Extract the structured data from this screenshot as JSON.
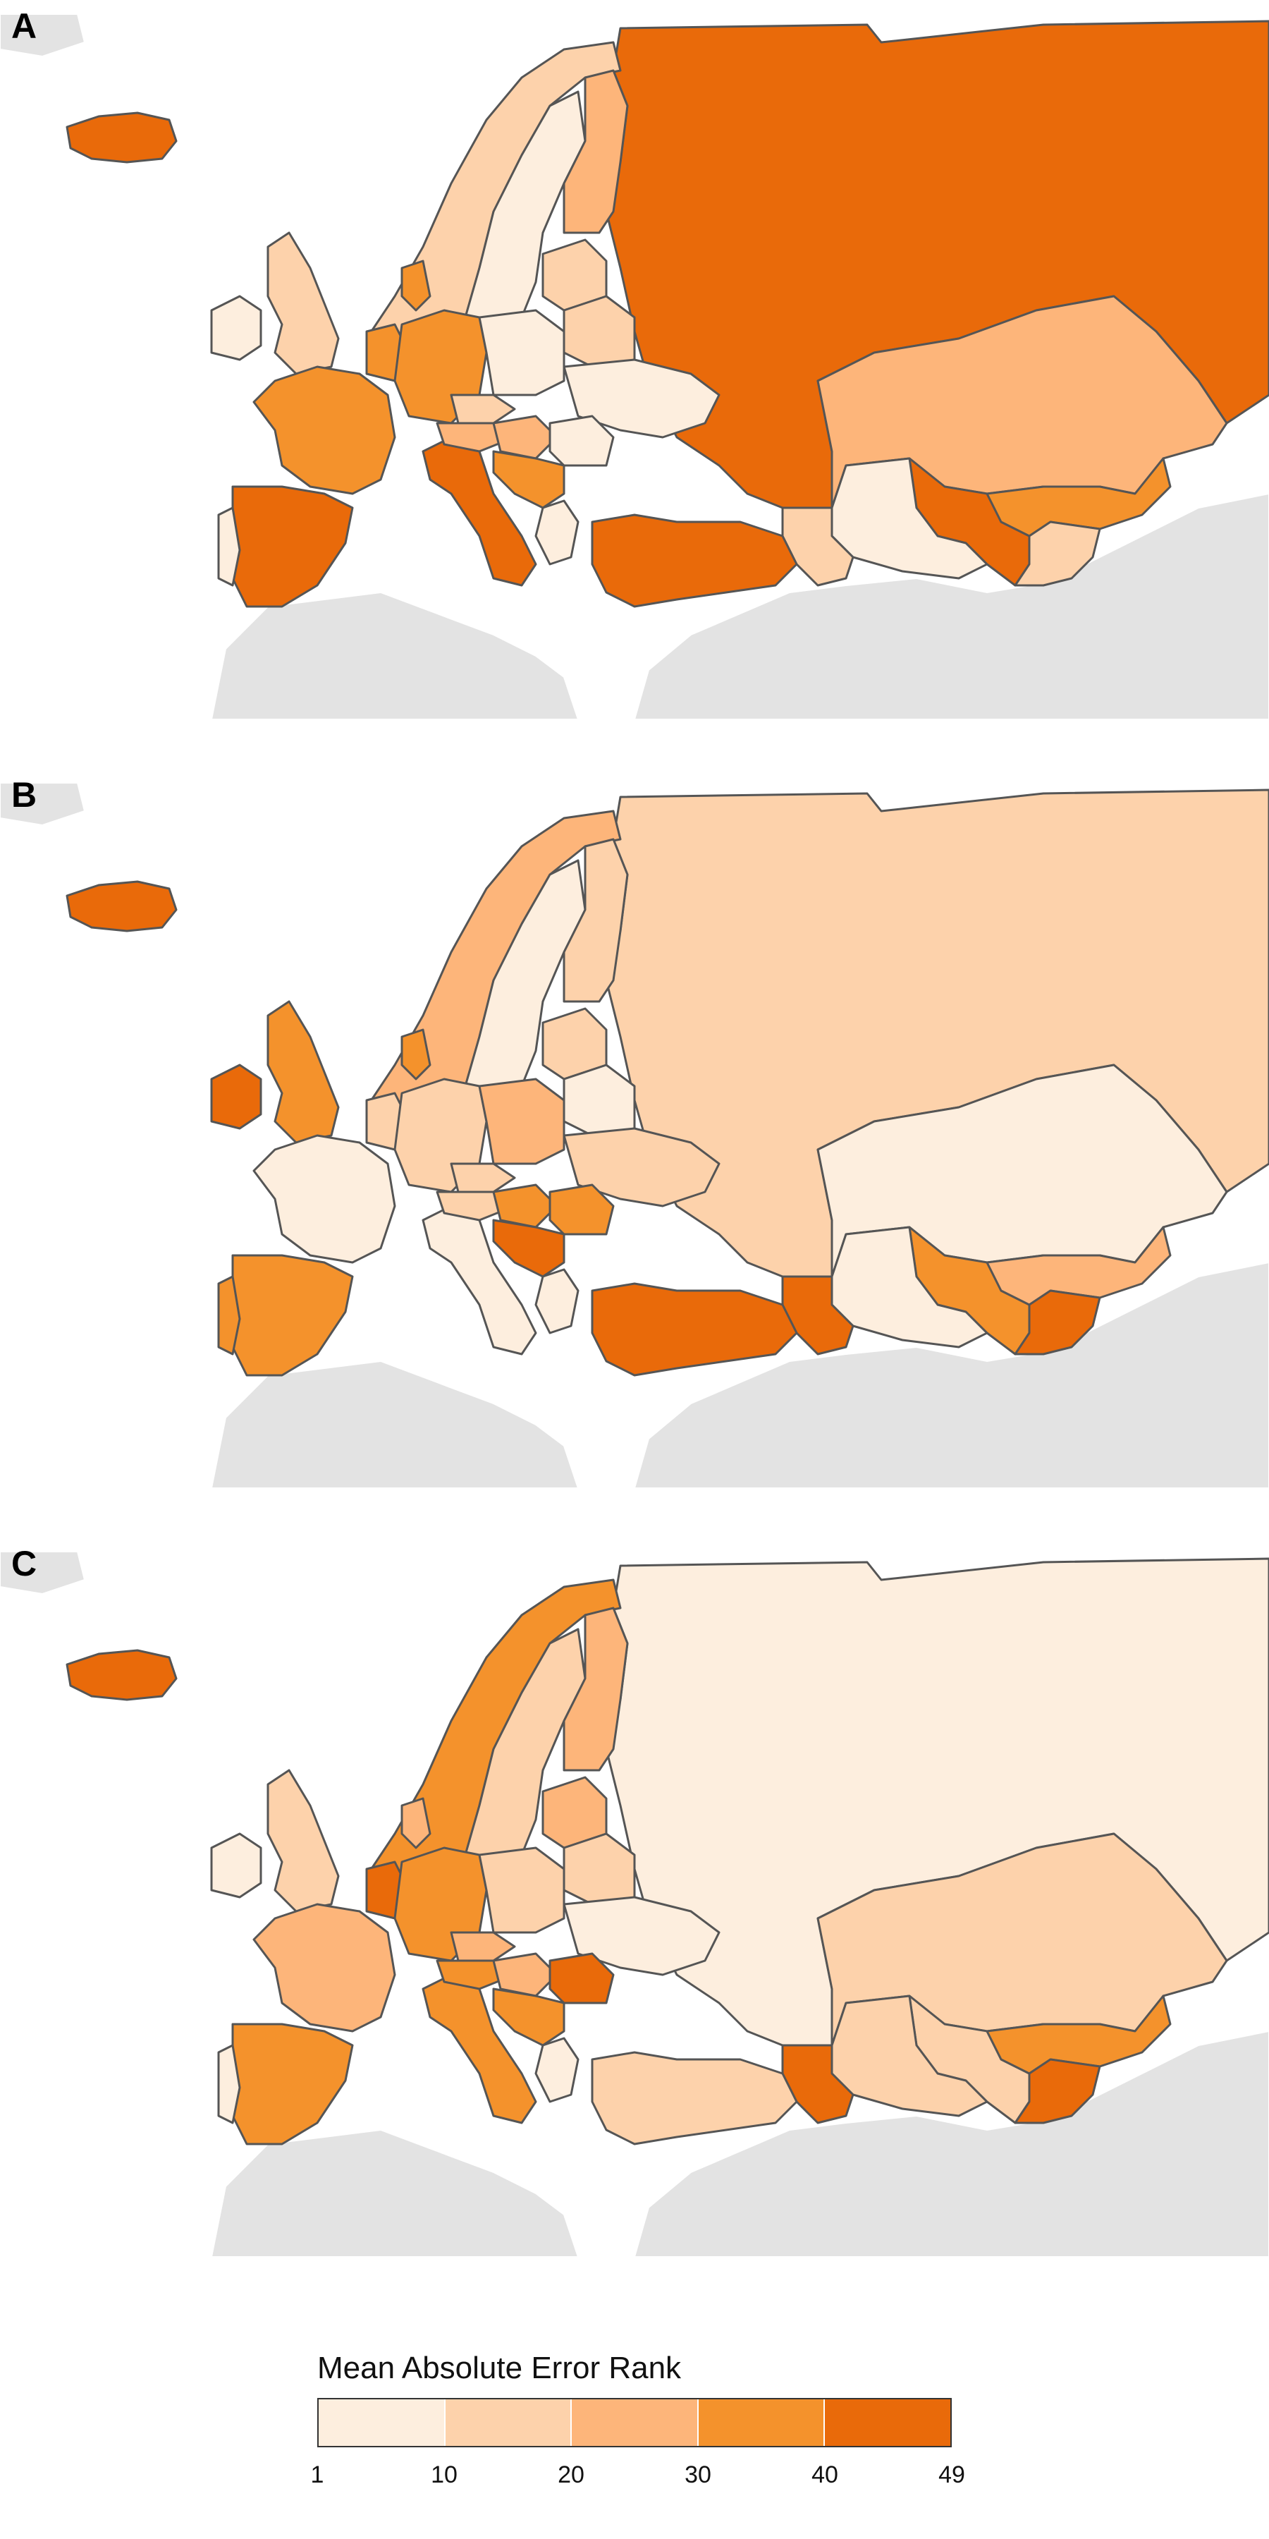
{
  "panels": [
    {
      "label": "A",
      "colors": {
        "russia": 5,
        "kazakhstan": 3,
        "uzbekistan": 5,
        "kyrgyz": 4,
        "tajik": 2,
        "turkmen": 1,
        "turkey": 5,
        "iceland": 5,
        "norway": 2,
        "sweden": 1,
        "finland": 3,
        "uk": 2,
        "ireland": 1,
        "france": 4,
        "spain": 5,
        "portugal": 1,
        "germany": 4,
        "italy": 5,
        "poland": 1,
        "baltics": 2,
        "belarus": 2,
        "ukraine": 1,
        "romania": 1,
        "balkans": 4,
        "greece": 1,
        "denmark": 4,
        "benelux": 4,
        "czech": 2,
        "austria": 3,
        "hungary": 3,
        "caucasus": 2
      }
    },
    {
      "label": "B",
      "colors": {
        "russia": 2,
        "kazakhstan": 1,
        "uzbekistan": 4,
        "kyrgyz": 3,
        "tajik": 5,
        "turkmen": 1,
        "turkey": 5,
        "iceland": 5,
        "norway": 3,
        "sweden": 1,
        "finland": 2,
        "uk": 4,
        "ireland": 5,
        "france": 1,
        "spain": 4,
        "portugal": 4,
        "germany": 2,
        "italy": 1,
        "poland": 3,
        "baltics": 2,
        "belarus": 1,
        "ukraine": 2,
        "romania": 4,
        "balkans": 5,
        "greece": 1,
        "denmark": 4,
        "benelux": 2,
        "czech": 2,
        "austria": 2,
        "hungary": 4,
        "caucasus": 5
      }
    },
    {
      "label": "C",
      "colors": {
        "russia": 1,
        "kazakhstan": 2,
        "uzbekistan": 2,
        "kyrgyz": 4,
        "tajik": 5,
        "turkmen": 2,
        "turkey": 2,
        "iceland": 5,
        "norway": 4,
        "sweden": 2,
        "finland": 3,
        "uk": 2,
        "ireland": 1,
        "france": 3,
        "spain": 4,
        "portugal": 1,
        "germany": 4,
        "italy": 4,
        "poland": 2,
        "baltics": 3,
        "belarus": 2,
        "ukraine": 1,
        "romania": 5,
        "balkans": 4,
        "greece": 1,
        "denmark": 3,
        "benelux": 5,
        "czech": 3,
        "austria": 4,
        "hungary": 3,
        "caucasus": 5
      }
    }
  ],
  "palette": [
    "#fdeede",
    "#fdd2ab",
    "#fdb57a",
    "#f4922c",
    "#e96a0a"
  ],
  "legend": {
    "title": "Mean Absolute Error Rank",
    "ticks": [
      "1",
      "10",
      "20",
      "30",
      "40",
      "49"
    ],
    "colors": [
      "#fdeede",
      "#fdd2ab",
      "#fdb57a",
      "#f4922c",
      "#e96a0a"
    ]
  }
}
